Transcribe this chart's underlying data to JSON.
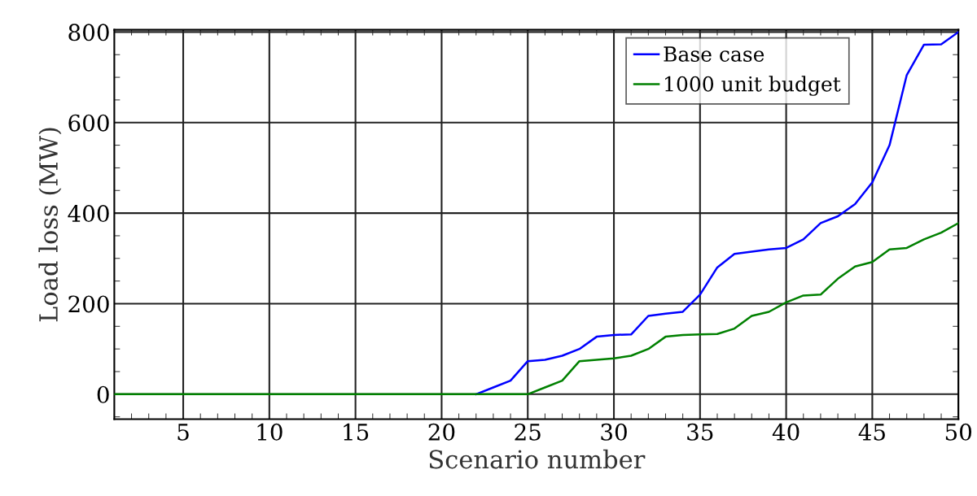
{
  "chart_data": {
    "type": "line",
    "xlabel": "Scenario number",
    "ylabel": "Load loss (MW)",
    "x": [
      1,
      2,
      3,
      4,
      5,
      6,
      7,
      8,
      9,
      10,
      11,
      12,
      13,
      14,
      15,
      16,
      17,
      18,
      19,
      20,
      21,
      22,
      23,
      24,
      25,
      26,
      27,
      28,
      29,
      30,
      31,
      32,
      33,
      34,
      35,
      36,
      37,
      38,
      39,
      40,
      41,
      42,
      43,
      44,
      45,
      46,
      47,
      48,
      49,
      50
    ],
    "series": [
      {
        "name": "Base case",
        "color": "#0000ff",
        "values": [
          null,
          null,
          null,
          null,
          null,
          null,
          null,
          null,
          null,
          null,
          null,
          null,
          null,
          null,
          null,
          null,
          null,
          null,
          null,
          null,
          null,
          0,
          15,
          30,
          73,
          76,
          85,
          100,
          127,
          131,
          132,
          173,
          178,
          182,
          220,
          280,
          310,
          315,
          320,
          323,
          342,
          378,
          393,
          420,
          468,
          550,
          705,
          772,
          773,
          800
        ]
      },
      {
        "name": "1000 unit budget",
        "color": "#008000",
        "values": [
          0,
          0,
          0,
          0,
          0,
          0,
          0,
          0,
          0,
          0,
          0,
          0,
          0,
          0,
          0,
          0,
          0,
          0,
          0,
          0,
          0,
          0,
          0,
          0,
          0,
          15,
          30,
          73,
          76,
          79,
          85,
          100,
          127,
          131,
          132,
          133,
          145,
          173,
          182,
          203,
          218,
          220,
          255,
          282,
          292,
          320,
          323,
          342,
          357,
          378
        ]
      }
    ],
    "xlim": [
      1,
      50
    ],
    "xticks": [
      5,
      10,
      15,
      20,
      25,
      30,
      35,
      40,
      45,
      50
    ],
    "ylim": [
      -55,
      805
    ],
    "yticks": [
      0,
      200,
      400,
      600,
      800
    ],
    "grid": true,
    "legend": "top right",
    "marker": "none",
    "line_style": "solid"
  }
}
